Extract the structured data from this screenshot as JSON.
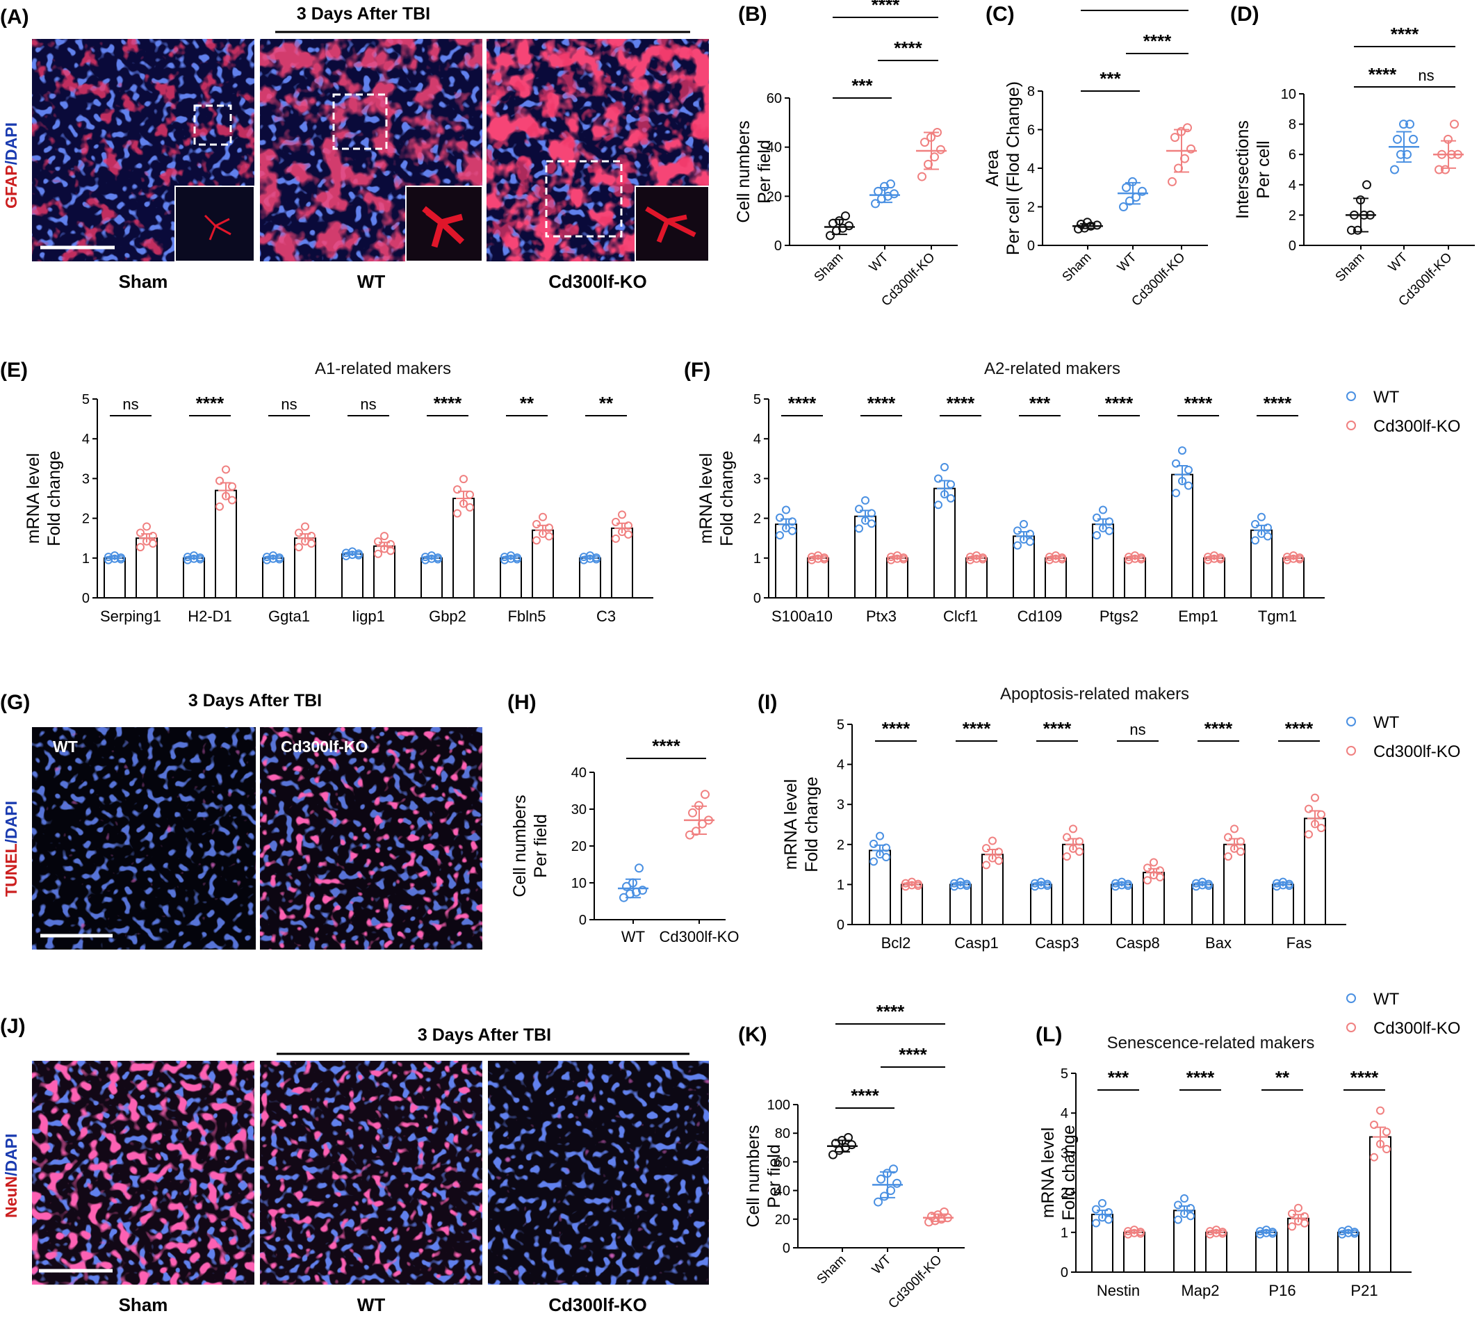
{
  "colors": {
    "wt": "#4a90e2",
    "ko": "#f08080",
    "sham": "#111111",
    "red": "#cc1f1f",
    "blue": "#1a3bb0"
  },
  "panel_labels": [
    "(A)",
    "(B)",
    "(C)",
    "(D)",
    "(E)",
    "(F)",
    "(G)",
    "(H)",
    "(I)",
    "(J)",
    "(K)",
    "(L)"
  ],
  "micrographs": {
    "A": {
      "title": "3 Days After TBI",
      "stain_red": "GFAP",
      "stain_blue": "DAPI",
      "labels": [
        "Sham",
        "WT",
        "Cd300lf-KO"
      ]
    },
    "G": {
      "title": "3 Days After TBI",
      "stain_red": "TUNEL",
      "stain_blue": "DAPI",
      "overlays": [
        "WT",
        "Cd300lf-KO"
      ]
    },
    "J": {
      "title": "3 Days After TBI",
      "stain_red": "NeuN",
      "stain_blue": "DAPI",
      "labels": [
        "Sham",
        "WT",
        "Cd300lf-KO"
      ]
    }
  },
  "legend": {
    "wt": "WT",
    "ko": "Cd300lf-KO"
  },
  "chart_data": [
    {
      "id": "B",
      "type": "scatter",
      "ylabel": [
        "Cell numbers",
        "Per field"
      ],
      "ylim": [
        0,
        60
      ],
      "yticks": [
        0,
        20,
        40,
        60
      ],
      "categories": [
        "Sham",
        "WT",
        "Cd300lf-KO"
      ],
      "means": [
        7.5,
        20.5,
        38.5
      ],
      "sds": [
        3,
        3,
        7.5
      ],
      "points": [
        [
          4,
          6,
          7,
          8,
          9,
          10,
          12
        ],
        [
          17,
          19,
          20,
          21,
          22,
          24,
          25
        ],
        [
          28,
          33,
          36,
          39,
          42,
          44,
          46
        ]
      ],
      "comparisons": [
        {
          "pair": [
            0,
            1
          ],
          "label": "***"
        },
        {
          "pair": [
            1,
            2
          ],
          "label": "****"
        },
        {
          "pair": [
            0,
            2
          ],
          "label": "****"
        }
      ]
    },
    {
      "id": "C",
      "type": "scatter",
      "ylabel": [
        "Area",
        "Per cell (Flod Change)"
      ],
      "ylim": [
        0,
        8
      ],
      "yticks": [
        0,
        2,
        4,
        6,
        8
      ],
      "categories": [
        "Sham",
        "WT",
        "Cd300lf-KO"
      ],
      "means": [
        1.0,
        2.7,
        4.9
      ],
      "sds": [
        0.12,
        0.55,
        1.1
      ],
      "points": [
        [
          0.85,
          0.9,
          1.0,
          1.05,
          1.1,
          1.2
        ],
        [
          2.0,
          2.3,
          2.5,
          2.8,
          3.0,
          3.3
        ],
        [
          3.3,
          4.0,
          4.5,
          5.0,
          5.6,
          5.9,
          6.1
        ]
      ],
      "comparisons": [
        {
          "pair": [
            0,
            1
          ],
          "label": "***"
        },
        {
          "pair": [
            1,
            2
          ],
          "label": "****"
        },
        {
          "pair": [
            0,
            2
          ],
          "label": "****"
        }
      ]
    },
    {
      "id": "D",
      "type": "scatter",
      "ylabel": [
        "Intersections",
        "Per cell"
      ],
      "ylim": [
        0,
        10
      ],
      "yticks": [
        0,
        2,
        4,
        6,
        8,
        10
      ],
      "categories": [
        "Sham",
        "WT",
        "Cd300lf-KO"
      ],
      "means": [
        2.0,
        6.5,
        6.0
      ],
      "sds": [
        1.1,
        1.0,
        0.9
      ],
      "points": [
        [
          1,
          1,
          2,
          2,
          2,
          3,
          4
        ],
        [
          5,
          6,
          6,
          7,
          7,
          8,
          8
        ],
        [
          5,
          5,
          6,
          6,
          6,
          7,
          8
        ]
      ],
      "comparisons": [
        {
          "pair": [
            0,
            1
          ],
          "label": "****"
        },
        {
          "pair": [
            1,
            2
          ],
          "label": "ns"
        },
        {
          "pair": [
            0,
            2
          ],
          "label": "****"
        }
      ]
    },
    {
      "id": "E",
      "type": "bar",
      "title": "A1-related makers",
      "ylabel": [
        "mRNA level",
        "Fold change"
      ],
      "ylim": [
        0,
        5
      ],
      "yticks": [
        0,
        1,
        2,
        3,
        4,
        5
      ],
      "categories": [
        "Serping1",
        "H2-D1",
        "Ggta1",
        "Iigp1",
        "Gbp2",
        "Fbln5",
        "C3"
      ],
      "series": [
        {
          "name": "WT",
          "values": [
            1.0,
            1.0,
            1.0,
            1.1,
            1.0,
            1.0,
            1.0
          ]
        },
        {
          "name": "Cd300lf-KO",
          "values": [
            1.5,
            2.7,
            1.5,
            1.3,
            2.5,
            1.7,
            1.75
          ]
        }
      ],
      "significance": [
        "ns",
        "****",
        "ns",
        "ns",
        "****",
        "**",
        "**"
      ]
    },
    {
      "id": "F",
      "type": "bar",
      "title": "A2-related makers",
      "ylabel": [
        "mRNA level",
        "Fold change"
      ],
      "ylim": [
        0,
        5
      ],
      "yticks": [
        0,
        1,
        2,
        3,
        4,
        5
      ],
      "categories": [
        "S100a10",
        "Ptx3",
        "Clcf1",
        "Cd109",
        "Ptgs2",
        "Emp1",
        "Tgm1"
      ],
      "series": [
        {
          "name": "WT",
          "values": [
            1.85,
            2.05,
            2.75,
            1.55,
            1.85,
            3.1,
            1.7
          ]
        },
        {
          "name": "Cd300lf-KO",
          "values": [
            1.0,
            1.0,
            1.0,
            1.0,
            1.0,
            1.0,
            1.0
          ]
        }
      ],
      "significance": [
        "****",
        "****",
        "****",
        "***",
        "****",
        "****",
        "****"
      ]
    },
    {
      "id": "H",
      "type": "scatter",
      "ylabel": [
        "Cell numbers",
        "Per field"
      ],
      "ylim": [
        0,
        40
      ],
      "yticks": [
        0,
        10,
        20,
        30,
        40
      ],
      "categories": [
        "WT",
        "Cd300lf-KO"
      ],
      "means": [
        8.5,
        27
      ],
      "sds": [
        2.5,
        3.8
      ],
      "points": [
        [
          6,
          7,
          7.5,
          8,
          9,
          10,
          14
        ],
        [
          23,
          24,
          26,
          27,
          29,
          31,
          34
        ]
      ],
      "comparisons": [
        {
          "pair": [
            0,
            1
          ],
          "label": "****"
        }
      ]
    },
    {
      "id": "I",
      "type": "bar",
      "title": "Apoptosis-related makers",
      "ylabel": [
        "mRNA level",
        "Fold change"
      ],
      "ylim": [
        0,
        5
      ],
      "yticks": [
        0,
        1,
        2,
        3,
        4,
        5
      ],
      "categories": [
        "Bcl2",
        "Casp1",
        "Casp3",
        "Casp8",
        "Bax",
        "Fas"
      ],
      "series": [
        {
          "name": "WT",
          "values": [
            1.85,
            1.0,
            1.0,
            1.0,
            1.0,
            1.0
          ]
        },
        {
          "name": "Cd300lf-KO",
          "values": [
            1.0,
            1.75,
            2.0,
            1.3,
            2.0,
            2.65
          ]
        }
      ],
      "significance": [
        "****",
        "****",
        "****",
        "ns",
        "****",
        "****"
      ]
    },
    {
      "id": "K",
      "type": "scatter",
      "ylabel": [
        "Cell numbers",
        "Per field"
      ],
      "ylim": [
        0,
        100
      ],
      "yticks": [
        0,
        20,
        40,
        60,
        80,
        100
      ],
      "categories": [
        "Sham",
        "WT",
        "Cd300lf-KO"
      ],
      "means": [
        71,
        44,
        21
      ],
      "sds": [
        4,
        9,
        2.5
      ],
      "points": [
        [
          65,
          68,
          70,
          72,
          73,
          75,
          77
        ],
        [
          32,
          36,
          40,
          45,
          48,
          52,
          55
        ],
        [
          18,
          19,
          20,
          21,
          22,
          23,
          25
        ]
      ],
      "comparisons": [
        {
          "pair": [
            0,
            1
          ],
          "label": "****"
        },
        {
          "pair": [
            1,
            2
          ],
          "label": "****"
        },
        {
          "pair": [
            0,
            2
          ],
          "label": "****"
        }
      ]
    },
    {
      "id": "L",
      "type": "bar",
      "title": "Senescence-related makers",
      "ylabel": [
        "mRNA level",
        "Fold change"
      ],
      "ylim": [
        0,
        5
      ],
      "yticks": [
        0,
        1,
        2,
        3,
        4,
        5
      ],
      "categories": [
        "Nestin",
        "Map2",
        "P16",
        "P21"
      ],
      "series": [
        {
          "name": "WT",
          "values": [
            1.45,
            1.55,
            1.0,
            1.0
          ]
        },
        {
          "name": "Cd300lf-KO",
          "values": [
            1.0,
            1.0,
            1.35,
            3.4
          ]
        }
      ],
      "significance": [
        "***",
        "****",
        "**",
        "****"
      ]
    }
  ]
}
